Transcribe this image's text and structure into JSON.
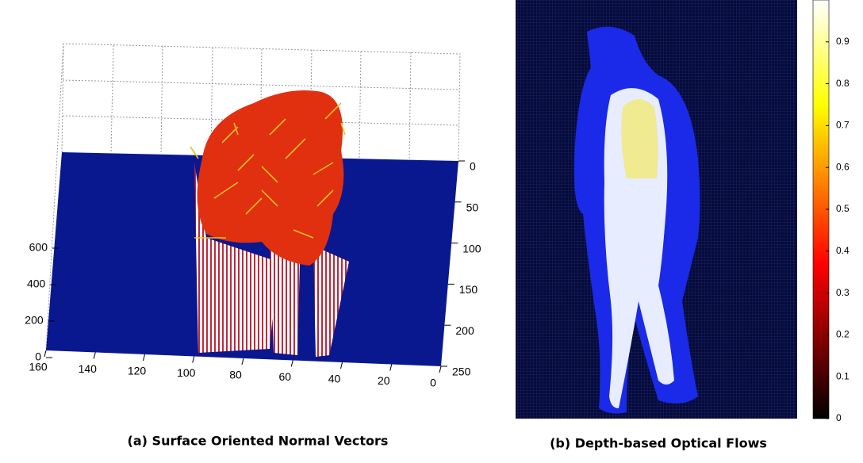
{
  "chart_data": [
    {
      "type": "surface",
      "title": "(a) Surface Oriented Normal  Vectors",
      "xlim": [
        160,
        0
      ],
      "xticks": [
        160,
        140,
        120,
        100,
        80,
        60,
        40,
        20,
        0
      ],
      "ylim": [
        0,
        250
      ],
      "yticks": [
        0,
        50,
        100,
        150,
        200,
        250
      ],
      "zlim": [
        0,
        600
      ],
      "zticks": [
        0,
        200,
        400,
        600
      ],
      "grid": true
    },
    {
      "type": "heatmap",
      "title": "(b) Depth-based Optical Flows",
      "clim": [
        0,
        1
      ],
      "cticks": [
        0,
        0.1,
        0.2,
        0.3,
        0.4,
        0.5,
        0.6,
        0.7,
        0.8,
        0.9
      ]
    }
  ]
}
